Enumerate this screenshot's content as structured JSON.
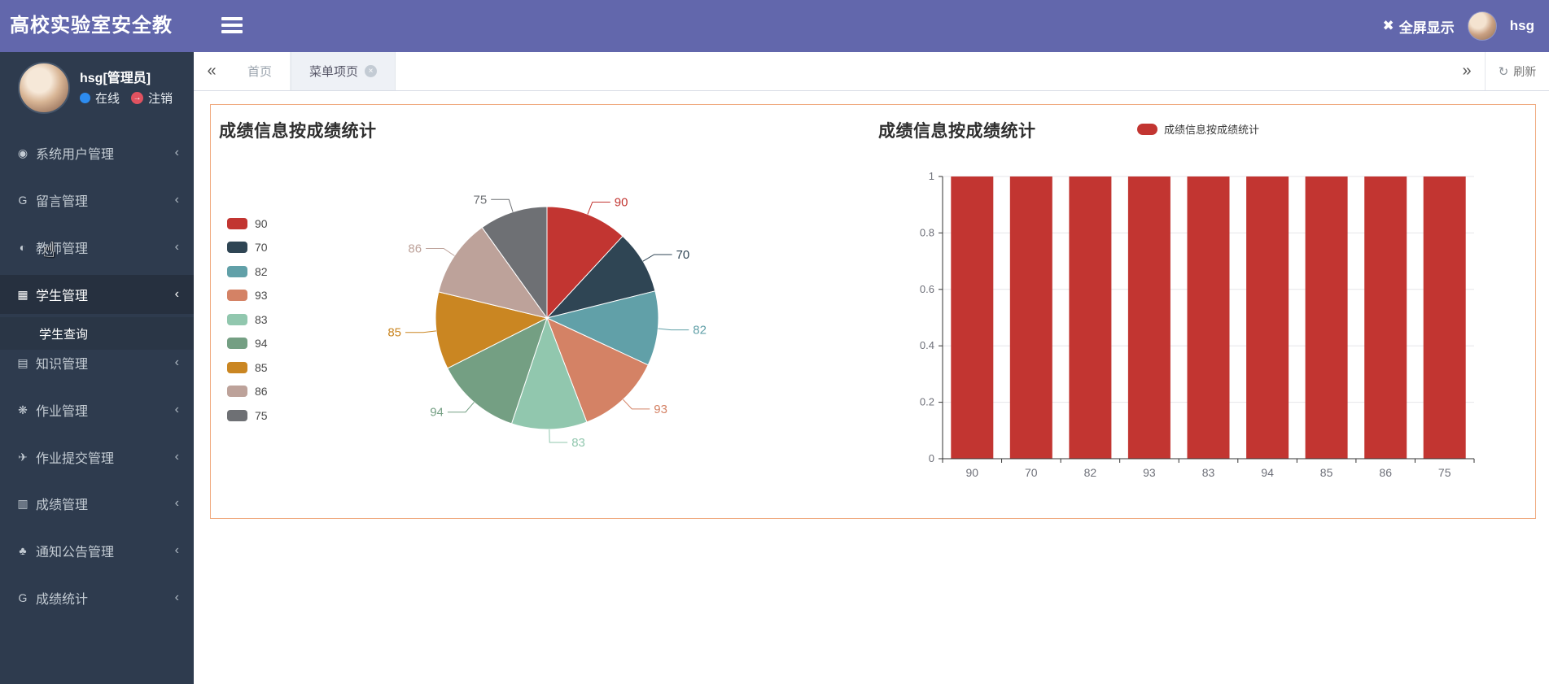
{
  "app": {
    "title": "高校实验室安全教",
    "fullscreen_label": "全屏显示",
    "username": "hsg"
  },
  "sidebar": {
    "user": {
      "name": "hsg[管理员]",
      "status_label": "在线",
      "logout_label": "注销"
    },
    "items": [
      {
        "key": "system-users",
        "label": "系统用户管理",
        "icon": "users-icon",
        "glyph": "◉"
      },
      {
        "key": "messages",
        "label": "留言管理",
        "icon": "message-icon",
        "glyph": "G"
      },
      {
        "key": "teachers",
        "label": "教师管理",
        "icon": "teacher-icon",
        "glyph": "◐"
      },
      {
        "key": "students",
        "label": "学生管理",
        "icon": "student-icon",
        "glyph": "▦",
        "active": true
      },
      {
        "key": "student-query",
        "label": "学生查询",
        "icon": null,
        "glyph": null,
        "submenu": true
      },
      {
        "key": "knowledge",
        "label": "知识管理",
        "icon": "digg-icon",
        "glyph": "▤"
      },
      {
        "key": "homework",
        "label": "作业管理",
        "icon": "drop-icon",
        "glyph": "❋"
      },
      {
        "key": "homework-submit",
        "label": "作业提交管理",
        "icon": "paper-plane-icon",
        "glyph": "✈"
      },
      {
        "key": "grades",
        "label": "成绩管理",
        "icon": "book-icon",
        "glyph": "▥"
      },
      {
        "key": "notices",
        "label": "通知公告管理",
        "icon": "paw-icon",
        "glyph": "♣"
      },
      {
        "key": "grade-stats",
        "label": "成绩统计",
        "icon": "stats-icon",
        "glyph": "G"
      }
    ]
  },
  "tabbar": {
    "tabs": [
      {
        "key": "home",
        "label": "首页",
        "active": false,
        "closable": false
      },
      {
        "key": "menu-page",
        "label": "菜单项页",
        "active": true,
        "closable": true
      }
    ],
    "refresh_label": "刷新"
  },
  "chart_data": [
    {
      "type": "pie",
      "title": "成绩信息按成绩统计",
      "categories": [
        "90",
        "70",
        "82",
        "93",
        "83",
        "94",
        "85",
        "86",
        "75"
      ],
      "values": [
        90,
        70,
        82,
        93,
        83,
        94,
        85,
        86,
        75
      ],
      "colors": [
        "#c23531",
        "#2f4554",
        "#61a0a8",
        "#d48265",
        "#91c7ae",
        "#749f83",
        "#ca8622",
        "#bda29a",
        "#6e7074"
      ],
      "legend_position": "left",
      "labels_outside": true,
      "start_angle_deg": 0,
      "direction": "clockwise"
    },
    {
      "type": "bar",
      "title": "成绩信息按成绩统计",
      "legend": "成绩信息按成绩统计",
      "categories": [
        "90",
        "70",
        "82",
        "93",
        "83",
        "94",
        "85",
        "86",
        "75"
      ],
      "values": [
        1,
        1,
        1,
        1,
        1,
        1,
        1,
        1,
        1
      ],
      "bar_color": "#c23531",
      "ylim": [
        0,
        1
      ],
      "yticks": [
        0,
        0.2,
        0.4,
        0.6,
        0.8,
        1
      ],
      "grid": true,
      "axis_color": "#333333",
      "tick_label_color": "#6e7079",
      "grid_color": "#e6e6e9"
    }
  ],
  "panel": {
    "border_color": "#f0ab80"
  }
}
